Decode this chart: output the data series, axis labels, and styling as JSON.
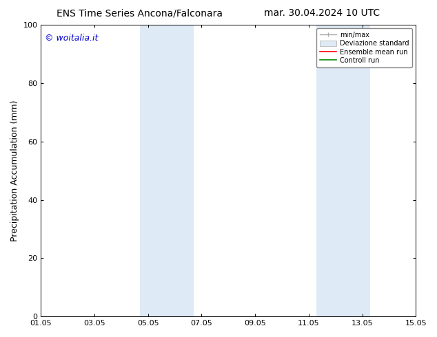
{
  "title_left": "ENS Time Series Ancona/Falconara",
  "title_right": "mar. 30.04.2024 10 UTC",
  "ylabel": "Precipitation Accumulation (mm)",
  "ylim": [
    0,
    100
  ],
  "yticks": [
    0,
    20,
    40,
    60,
    80,
    100
  ],
  "xlim_start": 0,
  "xlim_end": 14,
  "xtick_labels": [
    "01.05",
    "03.05",
    "05.05",
    "07.05",
    "09.05",
    "11.05",
    "13.05",
    "15.05"
  ],
  "xtick_positions": [
    0,
    2,
    4,
    6,
    8,
    10,
    12,
    14
  ],
  "shaded_regions": [
    {
      "xstart": 3.7,
      "xend": 5.7,
      "color": "#deeaf5"
    },
    {
      "xstart": 10.3,
      "xend": 12.3,
      "color": "#deeaf5"
    }
  ],
  "watermark_text": "© woitalia.it",
  "watermark_color": "#0000cc",
  "legend_labels": [
    "min/max",
    "Deviazione standard",
    "Ensemble mean run",
    "Controll run"
  ],
  "legend_colors_line": [
    "#aaaaaa",
    "#ccddee",
    "#ff0000",
    "#008800"
  ],
  "title_fontsize": 10,
  "axis_fontsize": 9,
  "tick_fontsize": 8,
  "bg_color": "#ffffff",
  "spine_color": "#000000"
}
